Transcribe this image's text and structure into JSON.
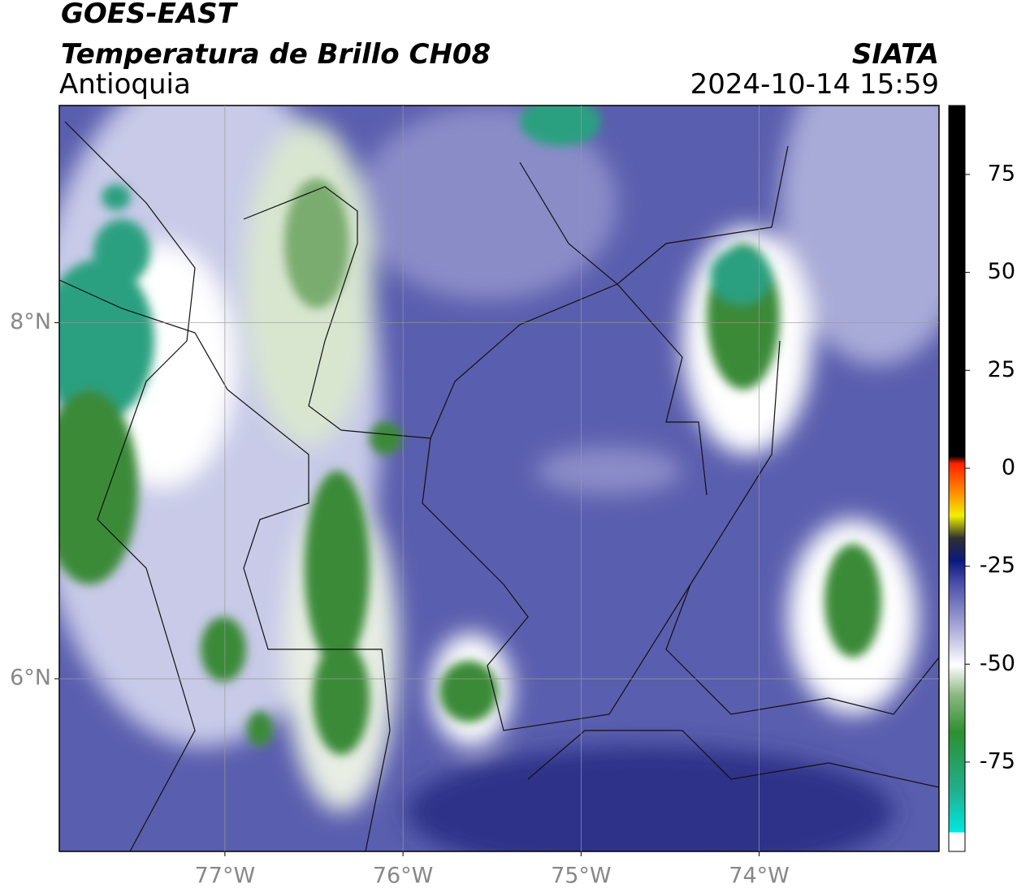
{
  "header": {
    "satellite": "GOES-EAST",
    "product": "Temperatura de Brillo CH08",
    "region": "Antioquia",
    "source": "SIATA",
    "datetime": "2024-10-14 15:59"
  },
  "map": {
    "xlim": [
      -77.93,
      -72.99
    ],
    "ylim": [
      5.03,
      9.22
    ],
    "xticks": [
      {
        "value": -77,
        "label": "77°W"
      },
      {
        "value": -76,
        "label": "76°W"
      },
      {
        "value": -75,
        "label": "75°W"
      },
      {
        "value": -74,
        "label": "74°W"
      }
    ],
    "yticks": [
      {
        "value": 6,
        "label": "6°N"
      },
      {
        "value": 8,
        "label": "8°N"
      }
    ],
    "grid": true
  },
  "colorbar": {
    "lim": [
      -97.8,
      92.6
    ],
    "ticks": [
      75,
      50,
      25,
      0,
      -25,
      -50,
      -75
    ]
  }
}
